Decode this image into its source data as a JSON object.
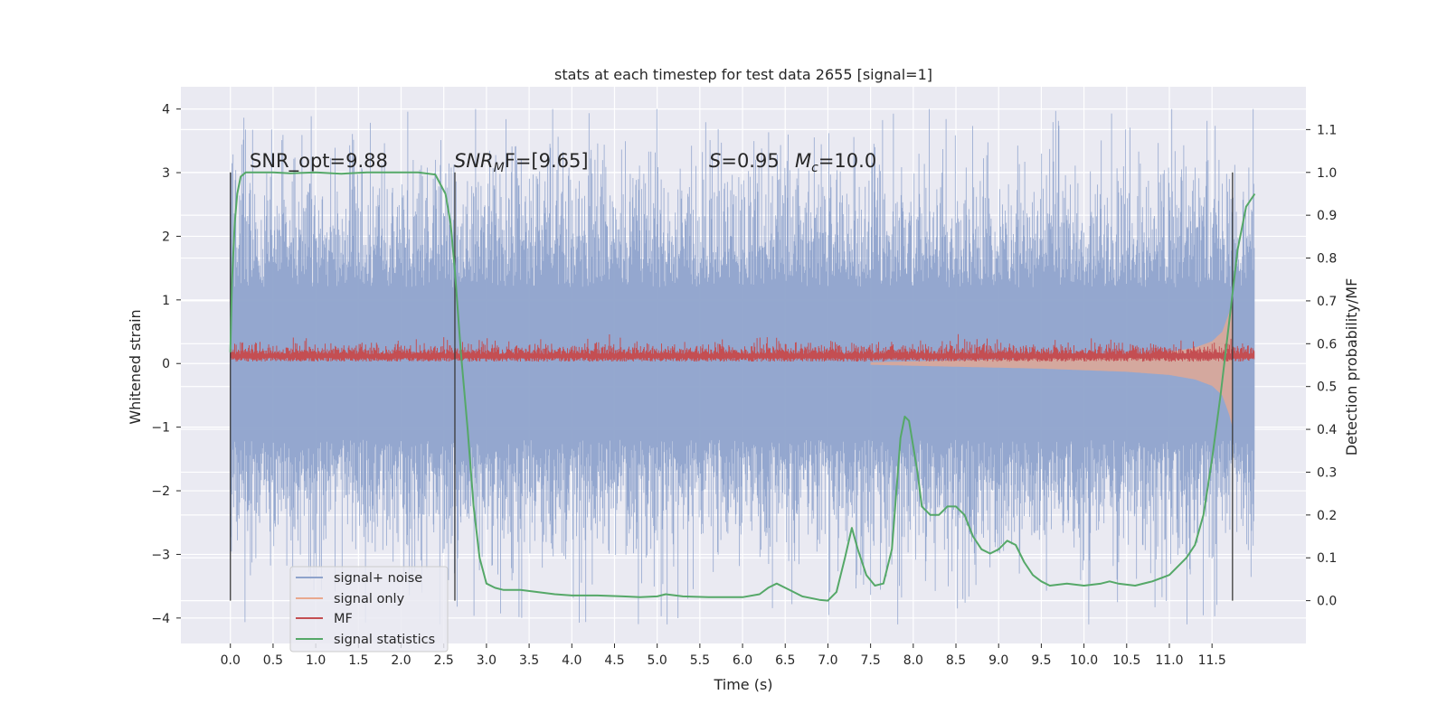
{
  "chart_data": {
    "type": "line",
    "title": "stats at each timestep for test data 2655 [signal=1]",
    "xlabel": "Time (s)",
    "ylabel": "Whitened strain",
    "y2label": "Detection probability/MF",
    "xlim": [
      -0.58,
      12.6
    ],
    "ylim": [
      -4.4,
      4.35
    ],
    "y2lim": [
      -0.1,
      1.2
    ],
    "xticks": [
      "0.0",
      "0.5",
      "1.0",
      "1.5",
      "2.0",
      "2.5",
      "3.0",
      "3.5",
      "4.0",
      "4.5",
      "5.0",
      "5.5",
      "6.0",
      "6.5",
      "7.0",
      "7.5",
      "8.0",
      "8.5",
      "9.0",
      "9.5",
      "10.0",
      "10.5",
      "11.0",
      "11.5"
    ],
    "yticks": [
      "4",
      "3",
      "2",
      "1",
      "0",
      "−1",
      "−2",
      "−3",
      "−4"
    ],
    "y2ticks": [
      "1.1",
      "1.0",
      "0.9",
      "0.8",
      "0.7",
      "0.6",
      "0.5",
      "0.4",
      "0.3",
      "0.2",
      "0.1",
      "0.0"
    ],
    "grid": true,
    "legend_position": "lower-left",
    "annotations": {
      "snr_opt": "SNR_opt=9.88",
      "snr_mf_main": "SNR",
      "snr_mf_sub": "M",
      "snr_mf_tail": "F=[9.65]",
      "s_main": "S",
      "s_value": "=0.95",
      "mc_main": "M",
      "mc_sub": "c",
      "mc_value": "=10.0"
    },
    "vertical_markers_x": [
      0.0,
      2.63,
      11.74
    ],
    "series": [
      {
        "name": "signal+ noise",
        "color": "#8fa3cc",
        "envelope": "noise, amplitude ~ ±2.5 with spikes to ±4",
        "x_range": [
          0.0,
          12.0
        ]
      },
      {
        "name": "signal only",
        "color": "#e9a88e",
        "envelope_x": [
          7.5,
          8.5,
          9.5,
          10.5,
          11.0,
          11.3,
          11.5,
          11.62,
          11.7,
          11.74
        ],
        "envelope_amp": [
          0.02,
          0.05,
          0.08,
          0.13,
          0.18,
          0.25,
          0.35,
          0.5,
          0.8,
          1.0
        ]
      },
      {
        "name": "MF",
        "color": "#c44e52",
        "envelope": "band 0.05 to 0.35 on strain axis",
        "x_range": [
          0.0,
          12.0
        ]
      },
      {
        "name": "signal statistics",
        "color": "#55a868",
        "x": [
          0.0,
          0.02,
          0.05,
          0.08,
          0.12,
          0.18,
          0.25,
          0.35,
          0.5,
          0.7,
          1.0,
          1.3,
          1.6,
          1.9,
          2.2,
          2.4,
          2.52,
          2.58,
          2.63,
          2.7,
          2.78,
          2.85,
          2.92,
          3.0,
          3.1,
          3.2,
          3.4,
          3.6,
          3.8,
          4.0,
          4.3,
          4.6,
          4.8,
          5.0,
          5.1,
          5.3,
          5.6,
          6.0,
          6.2,
          6.3,
          6.4,
          6.5,
          6.6,
          6.7,
          6.9,
          7.0,
          7.1,
          7.2,
          7.28,
          7.35,
          7.45,
          7.55,
          7.65,
          7.75,
          7.85,
          7.9,
          7.95,
          8.05,
          8.1,
          8.2,
          8.3,
          8.4,
          8.5,
          8.6,
          8.7,
          8.8,
          8.9,
          9.0,
          9.1,
          9.2,
          9.3,
          9.4,
          9.5,
          9.6,
          9.8,
          10.0,
          10.2,
          10.3,
          10.4,
          10.6,
          10.8,
          11.0,
          11.2,
          11.3,
          11.4,
          11.5,
          11.6,
          11.7,
          11.8,
          11.9,
          12.0
        ],
        "values": [
          0.58,
          0.75,
          0.88,
          0.95,
          0.99,
          1.0,
          1.0,
          1.0,
          1.0,
          0.998,
          1.0,
          0.997,
          1.0,
          1.0,
          1.0,
          0.995,
          0.95,
          0.88,
          0.77,
          0.58,
          0.4,
          0.22,
          0.1,
          0.04,
          0.03,
          0.025,
          0.025,
          0.02,
          0.015,
          0.012,
          0.012,
          0.01,
          0.008,
          0.01,
          0.015,
          0.01,
          0.008,
          0.008,
          0.015,
          0.03,
          0.04,
          0.03,
          0.02,
          0.01,
          0.002,
          0.0,
          0.02,
          0.1,
          0.17,
          0.12,
          0.06,
          0.035,
          0.04,
          0.12,
          0.38,
          0.43,
          0.42,
          0.3,
          0.22,
          0.2,
          0.2,
          0.22,
          0.22,
          0.2,
          0.15,
          0.12,
          0.11,
          0.12,
          0.14,
          0.13,
          0.09,
          0.06,
          0.045,
          0.035,
          0.04,
          0.035,
          0.04,
          0.045,
          0.04,
          0.035,
          0.045,
          0.06,
          0.1,
          0.13,
          0.2,
          0.33,
          0.48,
          0.65,
          0.82,
          0.92,
          0.95
        ]
      }
    ]
  }
}
